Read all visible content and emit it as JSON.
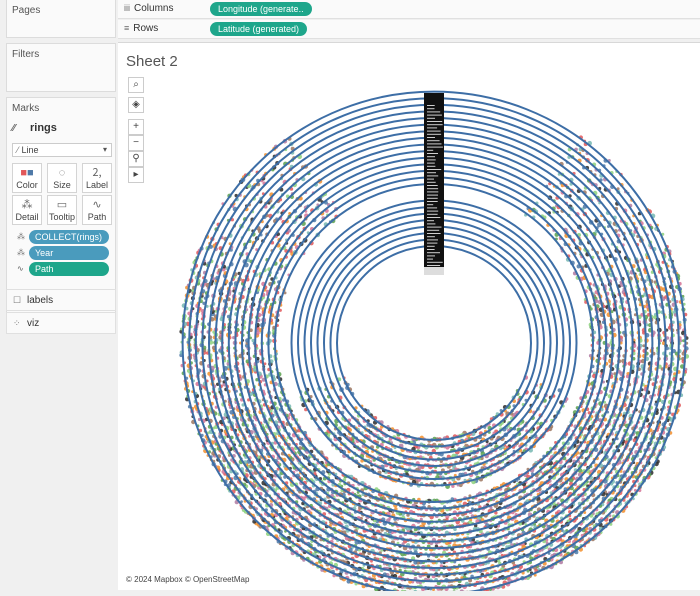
{
  "pages": {
    "title": "Pages"
  },
  "filters": {
    "title": "Filters"
  },
  "marks": {
    "title": "Marks",
    "layer_name": "rings",
    "mark_type": "Line",
    "buttons": {
      "color": "Color",
      "size": "Size",
      "label": "Label",
      "detail": "Detail",
      "tooltip": "Tooltip",
      "path": "Path"
    },
    "pills": [
      {
        "label": "COLLECT(rings)",
        "color": "#4a9bbd"
      },
      {
        "label": "Year",
        "color": "#4a9bbd"
      },
      {
        "label": "Path",
        "color": "#1ea68b"
      }
    ]
  },
  "layers": [
    {
      "label": "labels"
    },
    {
      "label": "viz"
    }
  ],
  "shelves": {
    "columns": {
      "label": "Columns",
      "pill": "Longitude (generate.."
    },
    "rows": {
      "label": "Rows",
      "pill": "Latitude (generated)"
    }
  },
  "sheet": {
    "title": "Sheet 2",
    "attribution": "© 2024 Mapbox © OpenStreetMap"
  },
  "colors": {
    "ring": "#3d6ea6",
    "dots": [
      "#4e79a7",
      "#e15759",
      "#59a14f",
      "#b07aa1",
      "#76b7b2",
      "#9c755f",
      "#2b2b2b",
      "#8cd17d",
      "#f28e2b",
      "#d37295"
    ]
  },
  "map_tools": [
    "search-icon",
    "layers-icon",
    "zoom-in-icon",
    "zoom-out-icon",
    "pin-icon",
    "play-icon"
  ]
}
